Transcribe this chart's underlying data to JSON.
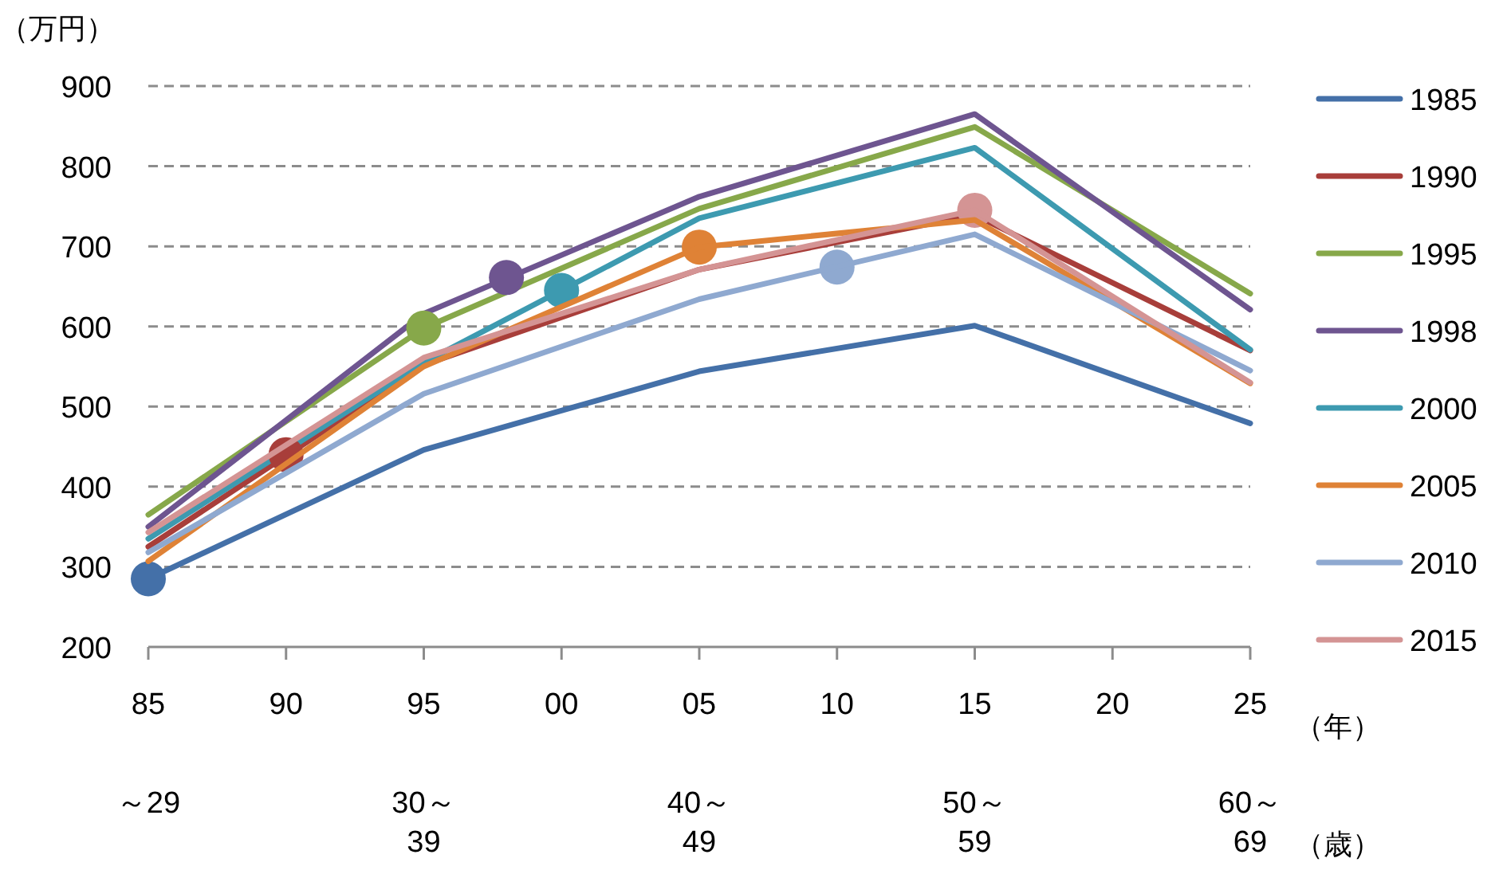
{
  "chart_data": {
    "type": "line",
    "ylabel": "（万円）",
    "xlabel": "（年）",
    "x": [
      1985,
      1995,
      2005,
      2015,
      2025
    ],
    "xlim": [
      1985,
      2025
    ],
    "xticks": [
      {
        "value": 1985,
        "label": "85"
      },
      {
        "value": 1990,
        "label": "90"
      },
      {
        "value": 1995,
        "label": "95"
      },
      {
        "value": 2000,
        "label": "00"
      },
      {
        "value": 2005,
        "label": "05"
      },
      {
        "value": 2010,
        "label": "10"
      },
      {
        "value": 2015,
        "label": "15"
      },
      {
        "value": 2020,
        "label": "20"
      },
      {
        "value": 2025,
        "label": "25"
      }
    ],
    "ylim": [
      200,
      900
    ],
    "yticks": [
      200,
      300,
      400,
      500,
      600,
      700,
      800,
      900
    ],
    "grid": "y",
    "legend": "right",
    "line_style": "solid",
    "series": [
      {
        "name": "1985",
        "color": "#4470a8",
        "values": [
          285,
          446,
          544,
          601,
          479
        ]
      },
      {
        "name": "1990",
        "color": "#a83e3a",
        "values": [
          325,
          552,
          671,
          739,
          570
        ]
      },
      {
        "name": "1995",
        "color": "#87a84a",
        "values": [
          365,
          598,
          747,
          849,
          641
        ]
      },
      {
        "name": "1998",
        "color": "#6e5590",
        "values": [
          350,
          616,
          762,
          865,
          621
        ]
      },
      {
        "name": "2000",
        "color": "#3d9ab0",
        "values": [
          335,
          555,
          735,
          823,
          571
        ]
      },
      {
        "type": "scatter",
        "x": [
          1985,
          1990,
          1995,
          1998,
          2000,
          2005,
          2010,
          2015
        ],
        "values": [
          285,
          440,
          598,
          661,
          645,
          699,
          674,
          745
        ],
        "colors": [
          "#4470a8",
          "#a83e3a",
          "#87a84a",
          "#6e5590",
          "#3d9ab0",
          "#df8236",
          "#8fa9d0",
          "#d49494"
        ]
      },
      {
        "name": "2005",
        "color": "#df8236",
        "values": [
          307,
          550,
          699,
          733,
          529
        ]
      },
      {
        "name": "2010",
        "color": "#8fa9d0",
        "values": [
          318,
          516,
          634,
          715,
          545
        ]
      },
      {
        "name": "2015",
        "color": "#d49494",
        "values": [
          343,
          561,
          671,
          745,
          530
        ]
      }
    ],
    "annotations": [
      "～29",
      "30～\n39",
      "40～\n49",
      "50～\n59",
      "60～\n69",
      "（歳）"
    ]
  }
}
